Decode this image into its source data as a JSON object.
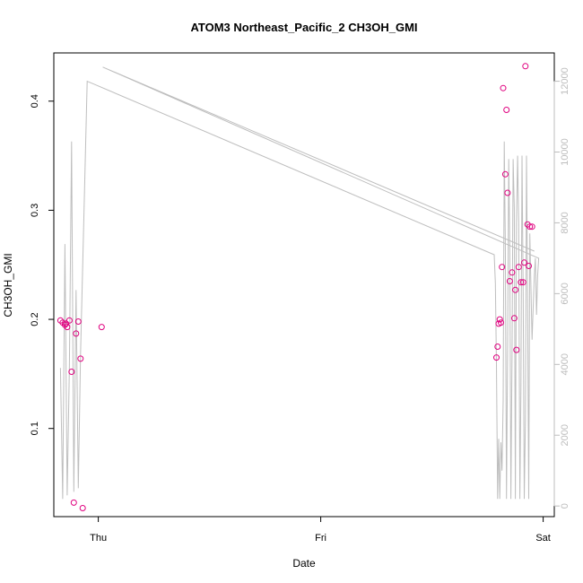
{
  "chart_data": {
    "type": "scatter",
    "title": "ATOM3 Northeast_Pacific_2 CH3OH_GMI",
    "xlabel": "Date",
    "ylabel": "CH3OH_GMI",
    "x_ticks": [
      "Thu",
      "Fri",
      "Sat"
    ],
    "xlim_days": [
      -0.2,
      2.05
    ],
    "ylim": [
      0.0192,
      0.4442
    ],
    "y_ticks": [
      0.1,
      0.2,
      0.3,
      0.4
    ],
    "y2lim": [
      -300,
      12800
    ],
    "y2_ticks": [
      0,
      2000,
      4000,
      6000,
      8000,
      10000,
      12000
    ],
    "grid": false,
    "legend": null,
    "colors": {
      "points": "#e0007f",
      "altitude_line": "#bebebe",
      "right_axis": "#bdbdbd"
    },
    "series": [
      {
        "type": "scatter",
        "x": [
          -0.17,
          -0.16,
          -0.15,
          -0.145,
          -0.14,
          -0.13,
          -0.12,
          -0.11,
          -0.1,
          -0.09,
          -0.08,
          -0.07,
          0.015,
          1.79,
          1.795,
          1.8,
          1.805,
          1.81,
          1.815,
          1.82,
          1.83,
          1.835,
          1.84,
          1.85,
          1.86,
          1.87,
          1.875,
          1.88,
          1.89,
          1.9,
          1.91,
          1.915,
          1.92,
          1.93,
          1.935,
          1.94,
          1.95
        ],
        "y": [
          0.199,
          0.197,
          0.195,
          0.196,
          0.193,
          0.199,
          0.152,
          0.032,
          0.187,
          0.198,
          0.164,
          0.027,
          0.193,
          0.165,
          0.175,
          0.196,
          0.2,
          0.197,
          0.248,
          0.412,
          0.333,
          0.392,
          0.316,
          0.235,
          0.243,
          0.201,
          0.227,
          0.172,
          0.248,
          0.234,
          0.234,
          0.252,
          0.432,
          0.287,
          0.249,
          0.285,
          0.285
        ]
      },
      {
        "type": "line",
        "axis": "right",
        "x": [
          -0.17,
          -0.16,
          -0.15,
          -0.14,
          -0.13,
          -0.12,
          -0.11,
          -0.1,
          -0.09,
          -0.08,
          -0.05,
          1.78,
          1.785,
          1.79,
          1.795,
          1.8,
          1.805,
          1.81,
          1.815,
          1.82,
          1.825,
          1.83,
          1.835,
          1.84,
          1.845,
          1.85,
          1.855,
          1.86,
          1.865,
          1.87,
          1.875,
          1.88,
          1.885,
          1.89,
          1.895,
          1.9,
          1.905,
          1.91,
          1.915,
          1.92,
          1.925,
          1.93,
          1.935,
          1.94,
          1.95,
          1.96,
          1.965,
          1.97,
          1.975,
          1.98,
          0.02,
          1.96,
          1.96
        ],
        "y": [
          3900,
          200,
          7400,
          300,
          4000,
          10300,
          400,
          6100,
          500,
          4300,
          12000,
          7100,
          6300,
          4000,
          200,
          1900,
          200,
          1800,
          1000,
          3000,
          10300,
          7400,
          200,
          4300,
          9800,
          7100,
          200,
          4300,
          9800,
          8400,
          200,
          8000,
          9900,
          8000,
          200,
          3300,
          9900,
          6000,
          200,
          2400,
          9900,
          6000,
          200,
          7700,
          4700,
          6500,
          7000,
          5400,
          6500,
          7000,
          12400,
          7200,
          7200
        ]
      }
    ]
  }
}
